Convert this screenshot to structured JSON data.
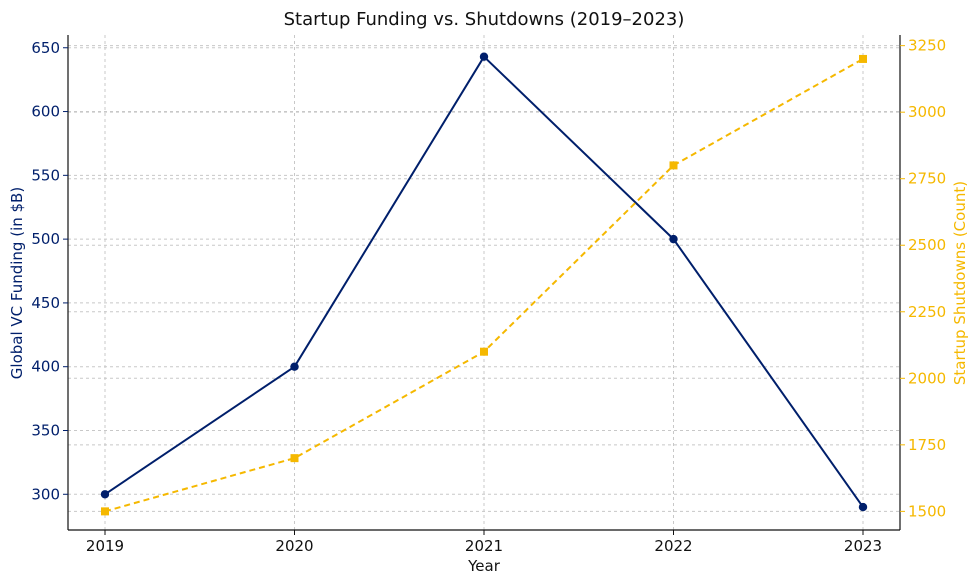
{
  "chart_data": {
    "type": "line",
    "title": "Startup Funding vs. Shutdowns (2019–2023)",
    "xlabel": "Year",
    "ylabel": "Global VC Funding (in $B)",
    "y2label": "Startup Shutdowns (Count)",
    "categories": [
      "2019",
      "2020",
      "2021",
      "2022",
      "2023"
    ],
    "ylim": [
      272,
      660
    ],
    "y2lim": [
      1430,
      3290
    ],
    "yticks": [
      300,
      350,
      400,
      450,
      500,
      550,
      600,
      650
    ],
    "y2ticks": [
      1500,
      1750,
      2000,
      2250,
      2500,
      2750,
      3000,
      3250
    ],
    "grid": true,
    "series": [
      {
        "name": "Global VC Funding (in $B)",
        "axis": "left",
        "values": [
          300,
          400,
          643,
          500,
          290
        ],
        "color": "#001f6b",
        "marker": "circle",
        "line_style": "solid"
      },
      {
        "name": "Startup Shutdowns (Count)",
        "axis": "right",
        "values": [
          1500,
          1700,
          2100,
          2800,
          3200
        ],
        "color": "#f5b800",
        "marker": "square",
        "line_style": "dashed"
      }
    ]
  },
  "colors": {
    "left_axis": "#001f6b",
    "right_axis": "#f5b800",
    "grid": "#c8c8c8",
    "axis": "#111111"
  }
}
